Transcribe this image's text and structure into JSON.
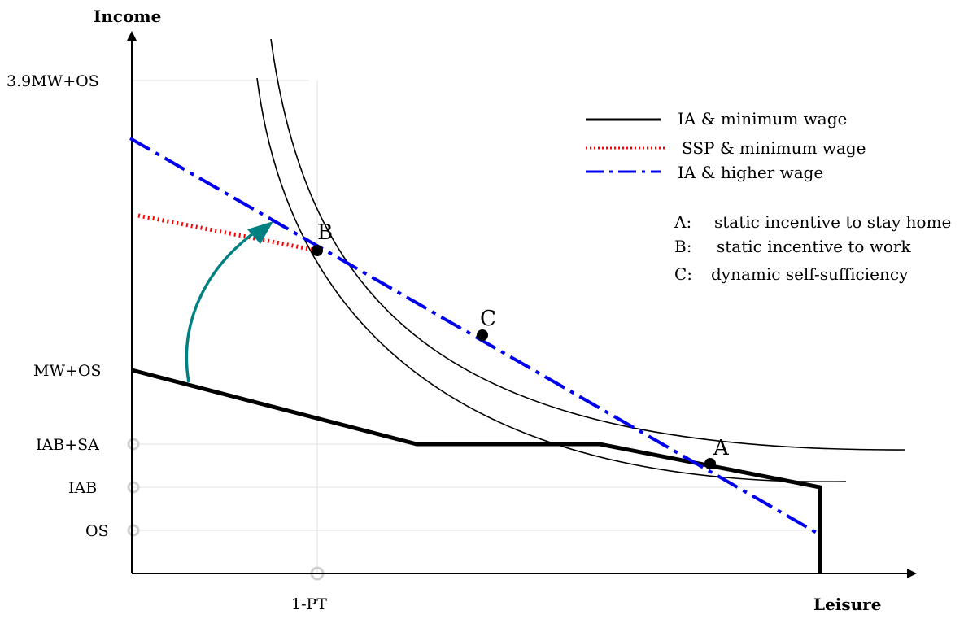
{
  "axes": {
    "y_title": "Income",
    "x_title": "Leisure"
  },
  "y_ticks": [
    "3.9MW+OS",
    "MW+OS",
    "IAB+SA",
    "IAB",
    "OS"
  ],
  "x_ticks": [
    "1-PT"
  ],
  "legend": [
    {
      "label": "IA & minimum wage",
      "style": "solid",
      "color": "#000000"
    },
    {
      "label": "SSP & minimum wage",
      "style": "dotted",
      "color": "#ff0000"
    },
    {
      "label": "IA & higher wage",
      "style": "dash-dot",
      "color": "#0000ee"
    }
  ],
  "points": [
    {
      "label": "B"
    },
    {
      "label": "C"
    },
    {
      "label": "A"
    }
  ],
  "notes": [
    {
      "key": "A:",
      "text": "static incentive to stay home"
    },
    {
      "key": "B:",
      "text": "static incentive to work"
    },
    {
      "key": "C:",
      "text": "dynamic self-sufficiency"
    }
  ],
  "colors": {
    "ia_min": "#000000",
    "ssp": "#ff0000",
    "ia_high": "#0000ee",
    "arrow": "#008080",
    "grid": "#e6e6e6"
  }
}
